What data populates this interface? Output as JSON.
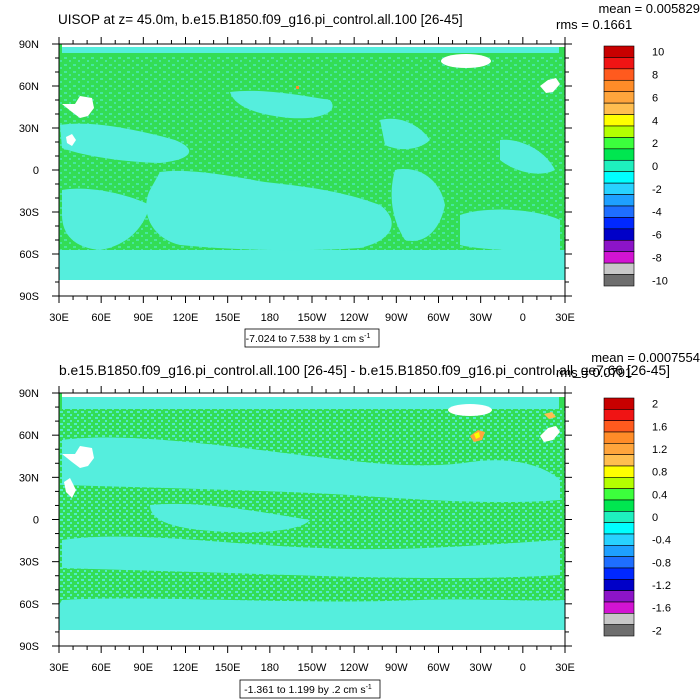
{
  "colors": {
    "land_white": "#ffffff",
    "green": "#33dd55",
    "cyan": "#55eedd",
    "frame": "#000000"
  },
  "chart_data": [
    {
      "type": "heatmap",
      "title": "UISOP at z=  45.0m, b.e15.B1850.f09_g16.pi_control.all.100 [26-45]",
      "stats": {
        "mean_text": "mean = 0.005829",
        "rms_text": "rms = 0.1661"
      },
      "x_ticks": [
        "30E",
        "60E",
        "90E",
        "120E",
        "150E",
        "180",
        "150W",
        "120W",
        "90W",
        "60W",
        "30W",
        "0",
        "30E"
      ],
      "y_ticks": [
        "90N",
        "60N",
        "30N",
        "0",
        "30S",
        "60S",
        "90S"
      ],
      "range_label": "-7.024 to 7.538 by 1 cm s",
      "range_unit_exp": "-1",
      "colorbar": {
        "labels": [
          "10",
          "8",
          "6",
          "4",
          "2",
          "0",
          "-2",
          "-4",
          "-6",
          "-8",
          "-10"
        ],
        "colors": [
          "#c80000",
          "#f01414",
          "#ff5a1e",
          "#ff8c28",
          "#ffa53c",
          "#ffbe50",
          "#ffff00",
          "#b4ff00",
          "#3cff3c",
          "#00e650",
          "#1ef0be",
          "#00ffff",
          "#28d2ff",
          "#1ea0ff",
          "#1e6eff",
          "#0028ff",
          "#0000c8",
          "#8c14c8",
          "#d214d2",
          "#c8c8c8",
          "#6e6e6e"
        ]
      }
    },
    {
      "type": "heatmap",
      "title": "b.e15.B1850.f09_g16.pi_control.all.100 [26-45] - b.e15.B1850.f09_g16.pi_control.all_ge7.66 [26-45]",
      "stats": {
        "mean_text": "mean = 0.0007554",
        "rms_text": "rms = 0.0791"
      },
      "x_ticks": [
        "30E",
        "60E",
        "90E",
        "120E",
        "150E",
        "180",
        "150W",
        "120W",
        "90W",
        "60W",
        "30W",
        "0",
        "30E"
      ],
      "y_ticks": [
        "90N",
        "60N",
        "30N",
        "0",
        "30S",
        "60S",
        "90S"
      ],
      "range_label": "-1.361 to 1.199 by .2 cm s",
      "range_unit_exp": "-1",
      "colorbar": {
        "labels": [
          "2",
          "1.6",
          "1.2",
          "0.8",
          "0.4",
          "0",
          "-0.4",
          "-0.8",
          "-1.2",
          "-1.6",
          "-2"
        ],
        "colors": [
          "#c80000",
          "#f01414",
          "#ff5a1e",
          "#ff8c28",
          "#ffa53c",
          "#ffbe50",
          "#ffff00",
          "#b4ff00",
          "#3cff3c",
          "#00e650",
          "#1ef0be",
          "#00ffff",
          "#28d2ff",
          "#1ea0ff",
          "#1e6eff",
          "#0028ff",
          "#0000c8",
          "#8c14c8",
          "#d214d2",
          "#c8c8c8",
          "#6e6e6e"
        ]
      }
    }
  ]
}
